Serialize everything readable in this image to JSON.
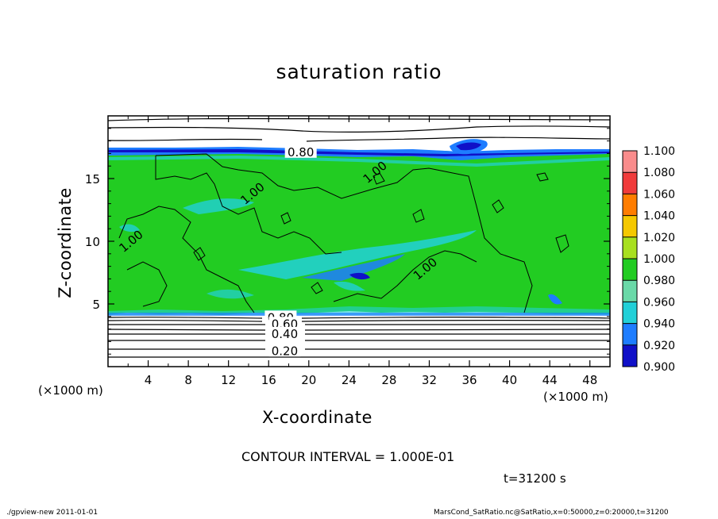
{
  "chart_data": {
    "type": "heatmap",
    "title": "saturation ratio",
    "xlabel": "X-coordinate",
    "ylabel": "Z-coordinate",
    "x_unit": "(×1000 m)",
    "xlim": [
      0,
      50
    ],
    "ylim": [
      0,
      20
    ],
    "x_ticks": [
      4,
      8,
      12,
      16,
      20,
      24,
      28,
      32,
      36,
      40,
      44,
      48
    ],
    "y_ticks": [
      5,
      10,
      15
    ],
    "colorbar": {
      "levels": [
        "1.100",
        "1.080",
        "1.060",
        "1.040",
        "1.020",
        "1.000",
        "0.980",
        "0.960",
        "0.940",
        "0.920",
        "0.900"
      ],
      "colors": [
        "#f98c8c",
        "#f03b3b",
        "#ff7d00",
        "#f5c800",
        "#a8e020",
        "#22cc22",
        "#6ad9a8",
        "#22d0d8",
        "#1e7dff",
        "#1010c8",
        "#6a1aa8"
      ]
    },
    "contour_labels": [
      "0.80",
      "1.00",
      "1.00",
      "1.00",
      "1.00",
      "0.80",
      "0.60",
      "0.40",
      "0.20"
    ],
    "contour_interval_text": "CONTOUR INTERVAL = 1.000E-01",
    "time_text": "t=31200 s"
  },
  "footer": {
    "left": "./gpview-new   2011-01-01",
    "right": "MarsCond_SatRatio.nc@SatRatio,x=0:50000,z=0:20000,t=31200"
  }
}
